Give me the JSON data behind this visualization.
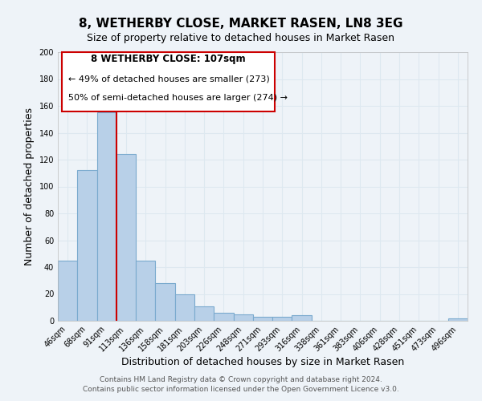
{
  "title": "8, WETHERBY CLOSE, MARKET RASEN, LN8 3EG",
  "subtitle": "Size of property relative to detached houses in Market Rasen",
  "xlabel": "Distribution of detached houses by size in Market Rasen",
  "ylabel": "Number of detached properties",
  "categories": [
    "46sqm",
    "68sqm",
    "91sqm",
    "113sqm",
    "136sqm",
    "158sqm",
    "181sqm",
    "203sqm",
    "226sqm",
    "248sqm",
    "271sqm",
    "293sqm",
    "316sqm",
    "338sqm",
    "361sqm",
    "383sqm",
    "406sqm",
    "428sqm",
    "451sqm",
    "473sqm",
    "496sqm"
  ],
  "values": [
    45,
    112,
    155,
    124,
    45,
    28,
    20,
    11,
    6,
    5,
    3,
    3,
    4,
    0,
    0,
    0,
    0,
    0,
    0,
    0,
    2
  ],
  "bar_color": "#b8d0e8",
  "bar_edge_color": "#7aaace",
  "vline_index": 2.5,
  "vline_color": "#cc0000",
  "ylim": [
    0,
    200
  ],
  "yticks": [
    0,
    20,
    40,
    60,
    80,
    100,
    120,
    140,
    160,
    180,
    200
  ],
  "annotation_title": "8 WETHERBY CLOSE: 107sqm",
  "annotation_line1": "← 49% of detached houses are smaller (273)",
  "annotation_line2": "50% of semi-detached houses are larger (274) →",
  "box_edge_color": "#cc0000",
  "footer1": "Contains HM Land Registry data © Crown copyright and database right 2024.",
  "footer2": "Contains public sector information licensed under the Open Government Licence v3.0.",
  "background_color": "#eef3f8",
  "grid_color": "#dde8f0",
  "title_fontsize": 11,
  "subtitle_fontsize": 9,
  "axis_label_fontsize": 9,
  "tick_fontsize": 7,
  "annotation_title_fontsize": 8.5,
  "annotation_text_fontsize": 8,
  "footer_fontsize": 6.5
}
